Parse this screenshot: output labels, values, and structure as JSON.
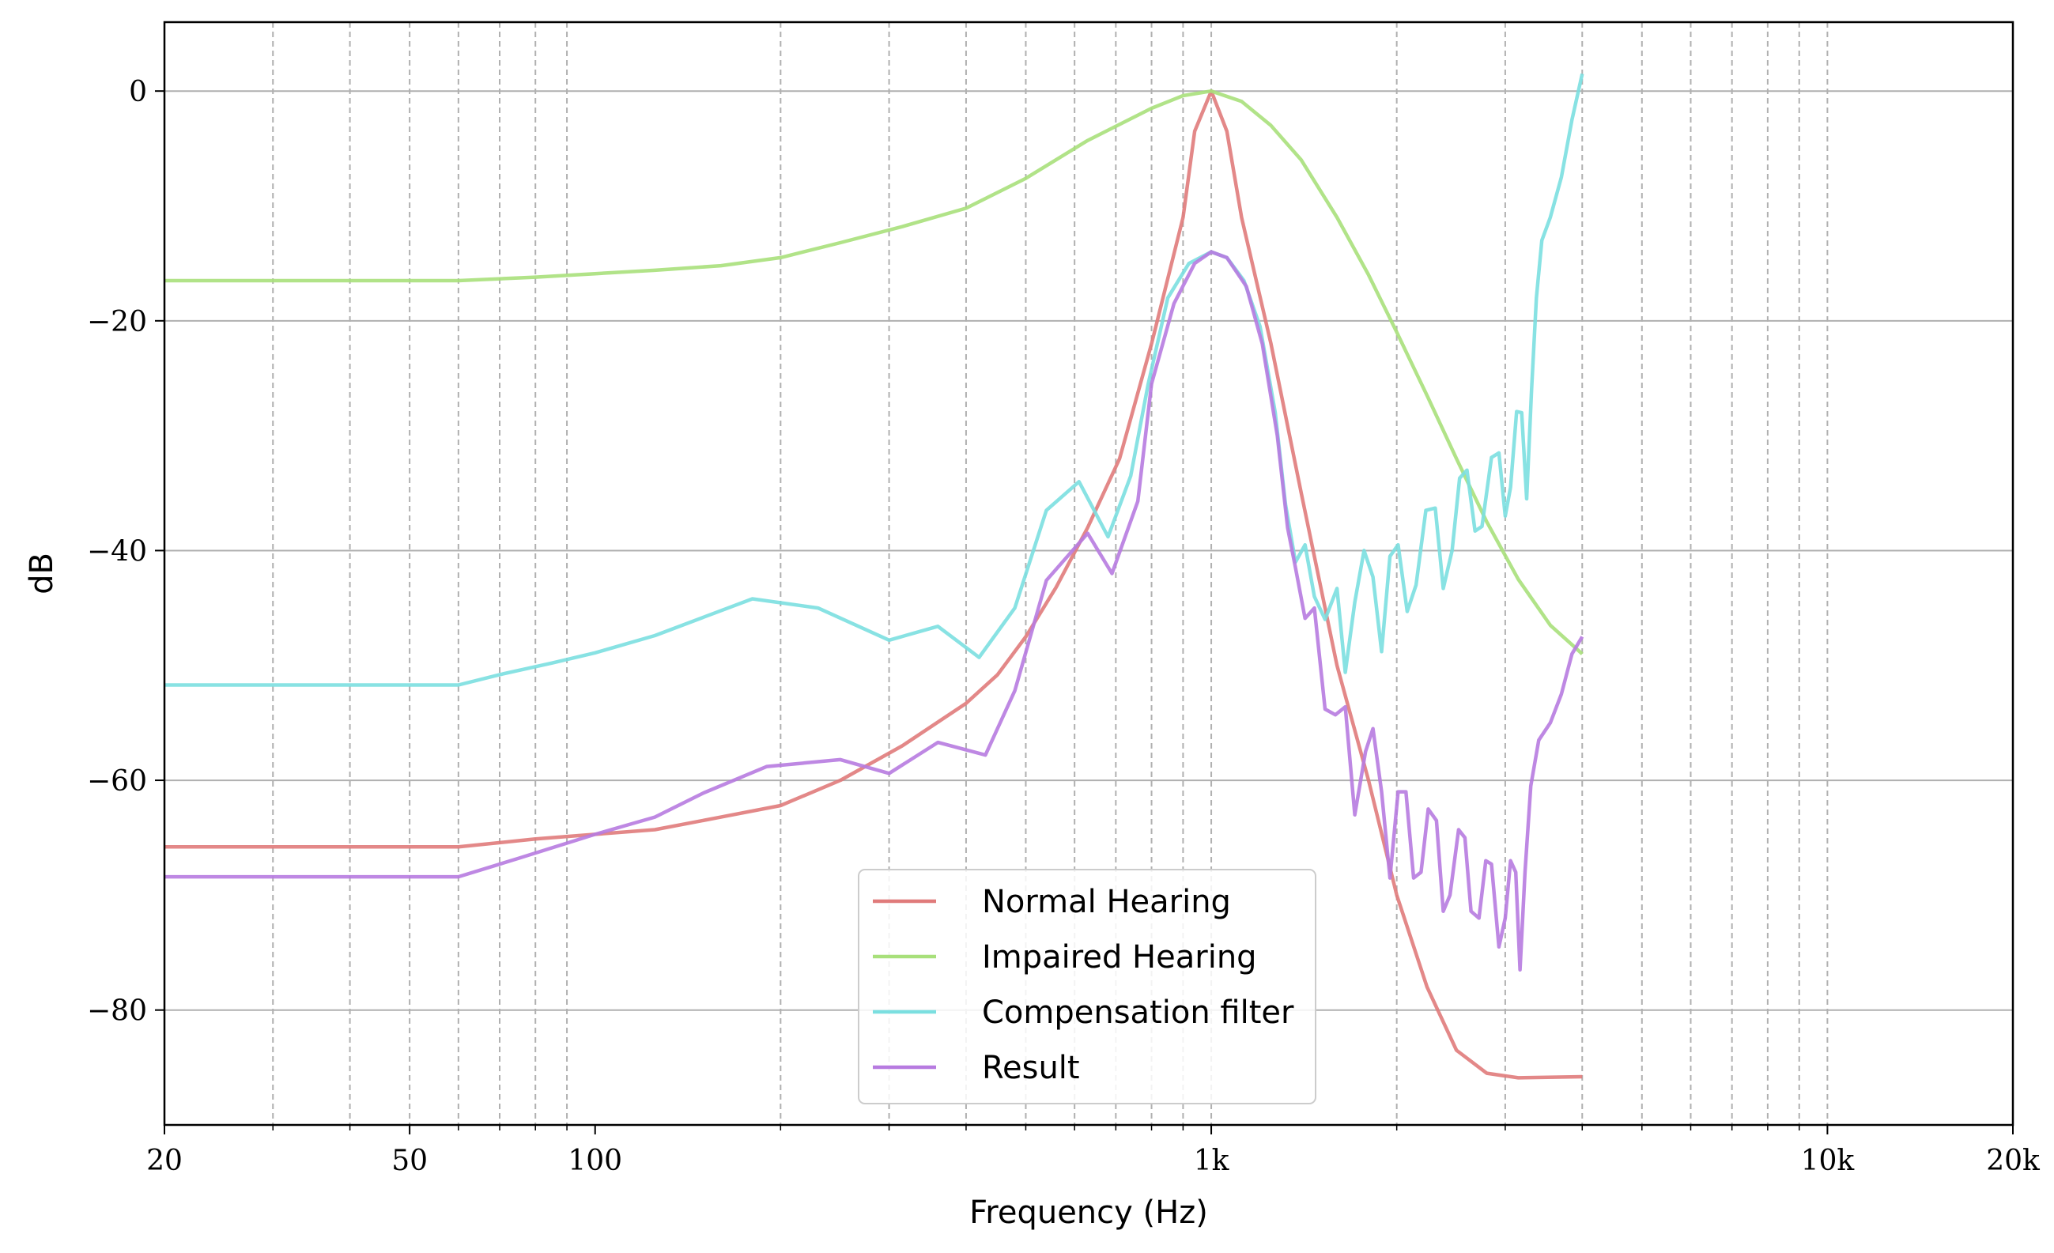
{
  "chart_data": {
    "type": "line",
    "title": "",
    "xlabel": "Frequency (Hz)",
    "ylabel": "dB",
    "xscale": "log",
    "xlim": [
      20,
      20000
    ],
    "ylim": [
      -90,
      6
    ],
    "x_ticks": [
      {
        "value": 20,
        "label": "20"
      },
      {
        "value": 50,
        "label": "50"
      },
      {
        "value": 100,
        "label": "100"
      },
      {
        "value": 1000,
        "label": "1k"
      },
      {
        "value": 10000,
        "label": "10k"
      },
      {
        "value": 20000,
        "label": "20k"
      }
    ],
    "y_ticks": [
      {
        "value": 0,
        "label": "0"
      },
      {
        "value": -20,
        "label": "−20"
      },
      {
        "value": -40,
        "label": "−40"
      },
      {
        "value": -60,
        "label": "−60"
      },
      {
        "value": -80,
        "label": "−80"
      }
    ],
    "minor_x_gridlines": [
      30,
      40,
      50,
      60,
      70,
      80,
      90,
      200,
      300,
      400,
      500,
      600,
      700,
      800,
      900,
      1000,
      2000,
      3000,
      4000,
      5000,
      6000,
      7000,
      8000,
      9000,
      10000
    ],
    "grid": {
      "y_major": true,
      "x_minor": "dashed"
    },
    "legend": {
      "position": "bottom-center"
    },
    "series": [
      {
        "name": "Normal Hearing",
        "color": "#e07b7b",
        "points": [
          [
            20,
            -65.8
          ],
          [
            60,
            -65.8
          ],
          [
            80,
            -65.1
          ],
          [
            100,
            -64.7
          ],
          [
            125,
            -64.3
          ],
          [
            160,
            -63.2
          ],
          [
            200,
            -62.2
          ],
          [
            250,
            -60.0
          ],
          [
            315,
            -57.0
          ],
          [
            400,
            -53.3
          ],
          [
            450,
            -50.8
          ],
          [
            500,
            -47.5
          ],
          [
            560,
            -43.2
          ],
          [
            630,
            -38.0
          ],
          [
            710,
            -32.0
          ],
          [
            800,
            -22.0
          ],
          [
            900,
            -11.0
          ],
          [
            940,
            -3.5
          ],
          [
            1000,
            0
          ],
          [
            1060,
            -3.5
          ],
          [
            1120,
            -11.0
          ],
          [
            1250,
            -22.0
          ],
          [
            1400,
            -35.0
          ],
          [
            1600,
            -50.0
          ],
          [
            1800,
            -60.0
          ],
          [
            2000,
            -70.0
          ],
          [
            2240,
            -78.0
          ],
          [
            2500,
            -83.5
          ],
          [
            2800,
            -85.5
          ],
          [
            3150,
            -85.9
          ],
          [
            4000,
            -85.8
          ]
        ]
      },
      {
        "name": "Impaired Hearing",
        "color": "#a8e07b",
        "points": [
          [
            20,
            -16.5
          ],
          [
            60,
            -16.5
          ],
          [
            80,
            -16.2
          ],
          [
            100,
            -15.9
          ],
          [
            125,
            -15.6
          ],
          [
            160,
            -15.2
          ],
          [
            200,
            -14.5
          ],
          [
            250,
            -13.2
          ],
          [
            315,
            -11.8
          ],
          [
            400,
            -10.2
          ],
          [
            500,
            -7.6
          ],
          [
            630,
            -4.3
          ],
          [
            800,
            -1.5
          ],
          [
            900,
            -0.4
          ],
          [
            1000,
            0
          ],
          [
            1120,
            -0.9
          ],
          [
            1250,
            -3.0
          ],
          [
            1400,
            -6.0
          ],
          [
            1600,
            -11.0
          ],
          [
            1800,
            -16.0
          ],
          [
            2000,
            -21.0
          ],
          [
            2240,
            -26.5
          ],
          [
            2500,
            -32.0
          ],
          [
            2800,
            -37.5
          ],
          [
            3150,
            -42.5
          ],
          [
            3550,
            -46.5
          ],
          [
            4000,
            -49.0
          ]
        ]
      },
      {
        "name": "Compensation filter",
        "color": "#7bdfe0",
        "points": [
          [
            20,
            -51.7
          ],
          [
            60,
            -51.7
          ],
          [
            70,
            -50.8
          ],
          [
            85,
            -49.8
          ],
          [
            100,
            -48.9
          ],
          [
            125,
            -47.4
          ],
          [
            150,
            -45.8
          ],
          [
            180,
            -44.2
          ],
          [
            230,
            -45.0
          ],
          [
            300,
            -47.8
          ],
          [
            360,
            -46.6
          ],
          [
            420,
            -49.3
          ],
          [
            480,
            -45.0
          ],
          [
            540,
            -36.5
          ],
          [
            610,
            -34.0
          ],
          [
            680,
            -38.8
          ],
          [
            740,
            -33.5
          ],
          [
            790,
            -25.5
          ],
          [
            850,
            -18.0
          ],
          [
            920,
            -15.0
          ],
          [
            1000,
            -14.0
          ],
          [
            1060,
            -14.5
          ],
          [
            1130,
            -16.5
          ],
          [
            1200,
            -20.5
          ],
          [
            1270,
            -28.0
          ],
          [
            1320,
            -36.0
          ],
          [
            1370,
            -41.0
          ],
          [
            1420,
            -39.5
          ],
          [
            1470,
            -44.0
          ],
          [
            1530,
            -46.0
          ],
          [
            1600,
            -43.3
          ],
          [
            1650,
            -50.6
          ],
          [
            1710,
            -44.5
          ],
          [
            1770,
            -40.0
          ],
          [
            1830,
            -42.3
          ],
          [
            1890,
            -48.8
          ],
          [
            1950,
            -40.5
          ],
          [
            2010,
            -39.5
          ],
          [
            2080,
            -45.3
          ],
          [
            2150,
            -43.0
          ],
          [
            2230,
            -36.5
          ],
          [
            2310,
            -36.3
          ],
          [
            2380,
            -43.3
          ],
          [
            2460,
            -40.0
          ],
          [
            2530,
            -33.7
          ],
          [
            2600,
            -33.0
          ],
          [
            2680,
            -38.3
          ],
          [
            2750,
            -37.9
          ],
          [
            2850,
            -31.9
          ],
          [
            2930,
            -31.5
          ],
          [
            3000,
            -37.0
          ],
          [
            3060,
            -34.5
          ],
          [
            3130,
            -27.9
          ],
          [
            3190,
            -28.0
          ],
          [
            3250,
            -35.5
          ],
          [
            3310,
            -26.0
          ],
          [
            3370,
            -18.0
          ],
          [
            3440,
            -13.0
          ],
          [
            3550,
            -11.0
          ],
          [
            3700,
            -7.5
          ],
          [
            3850,
            -2.5
          ],
          [
            4000,
            1.5
          ]
        ]
      },
      {
        "name": "Result",
        "color": "#b77be0",
        "points": [
          [
            20,
            -68.4
          ],
          [
            60,
            -68.4
          ],
          [
            75,
            -66.8
          ],
          [
            100,
            -64.7
          ],
          [
            125,
            -63.2
          ],
          [
            150,
            -61.1
          ],
          [
            190,
            -58.8
          ],
          [
            250,
            -58.2
          ],
          [
            300,
            -59.4
          ],
          [
            360,
            -56.7
          ],
          [
            430,
            -57.8
          ],
          [
            480,
            -52.2
          ],
          [
            540,
            -42.6
          ],
          [
            630,
            -38.5
          ],
          [
            690,
            -42.0
          ],
          [
            760,
            -35.7
          ],
          [
            800,
            -25.5
          ],
          [
            870,
            -18.5
          ],
          [
            940,
            -15.0
          ],
          [
            1000,
            -14.0
          ],
          [
            1060,
            -14.5
          ],
          [
            1140,
            -17.0
          ],
          [
            1210,
            -22.0
          ],
          [
            1280,
            -30.0
          ],
          [
            1330,
            -38.0
          ],
          [
            1370,
            -41.5
          ],
          [
            1420,
            -45.9
          ],
          [
            1470,
            -45.0
          ],
          [
            1530,
            -53.8
          ],
          [
            1590,
            -54.3
          ],
          [
            1650,
            -53.6
          ],
          [
            1710,
            -63.0
          ],
          [
            1780,
            -57.5
          ],
          [
            1830,
            -55.5
          ],
          [
            1890,
            -61.0
          ],
          [
            1950,
            -68.5
          ],
          [
            2010,
            -61.0
          ],
          [
            2070,
            -61.0
          ],
          [
            2130,
            -68.5
          ],
          [
            2190,
            -68.0
          ],
          [
            2250,
            -62.5
          ],
          [
            2320,
            -63.5
          ],
          [
            2380,
            -71.4
          ],
          [
            2440,
            -70.0
          ],
          [
            2520,
            -64.3
          ],
          [
            2580,
            -65.0
          ],
          [
            2640,
            -71.4
          ],
          [
            2720,
            -72.0
          ],
          [
            2790,
            -67.0
          ],
          [
            2850,
            -67.3
          ],
          [
            2930,
            -74.5
          ],
          [
            3000,
            -72.0
          ],
          [
            3060,
            -67.0
          ],
          [
            3120,
            -68.0
          ],
          [
            3170,
            -76.5
          ],
          [
            3230,
            -68.0
          ],
          [
            3300,
            -60.5
          ],
          [
            3400,
            -56.5
          ],
          [
            3550,
            -55.0
          ],
          [
            3700,
            -52.5
          ],
          [
            3850,
            -49.0
          ],
          [
            4000,
            -47.5
          ]
        ]
      }
    ]
  }
}
